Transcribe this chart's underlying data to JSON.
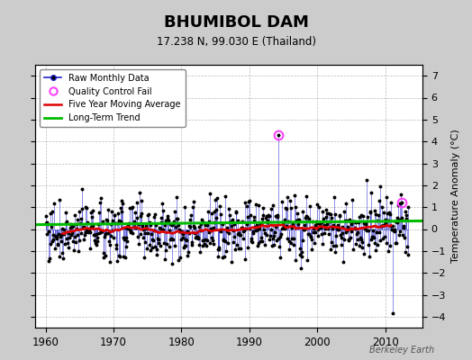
{
  "title": "BHUMIBOL DAM",
  "subtitle": "17.238 N, 99.030 E (Thailand)",
  "ylabel": "Temperature Anomaly (°C)",
  "watermark": "Berkeley Earth",
  "xlim": [
    1958.5,
    2015.5
  ],
  "ylim": [
    -4.5,
    7.5
  ],
  "yticks": [
    -4,
    -3,
    -2,
    -1,
    0,
    1,
    2,
    3,
    4,
    5,
    6,
    7
  ],
  "xticks": [
    1960,
    1970,
    1980,
    1990,
    2000,
    2010
  ],
  "raw_color": "#2222cc",
  "dot_color": "#000000",
  "moving_avg_color": "#dd0000",
  "trend_color": "#00bb00",
  "qc_fail_color": "#ff44ff",
  "bg_color": "#ffffff",
  "outer_bg": "#cccccc",
  "trend_intercept": 0.28,
  "trend_slope": 0.003
}
